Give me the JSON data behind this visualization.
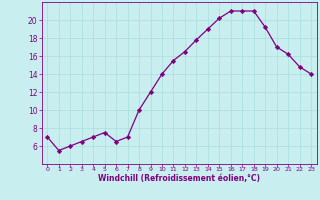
{
  "x": [
    0,
    1,
    2,
    3,
    4,
    5,
    6,
    7,
    8,
    9,
    10,
    11,
    12,
    13,
    14,
    15,
    16,
    17,
    18,
    19,
    20,
    21,
    22,
    23
  ],
  "y": [
    7,
    5.5,
    6,
    6.5,
    7,
    7.5,
    6.5,
    7,
    10,
    12,
    14,
    15.5,
    16.5,
    17.8,
    19,
    20.2,
    21,
    21,
    21,
    19.2,
    17,
    16.2,
    14.8,
    14
  ],
  "line_color": "#800080",
  "marker": "D",
  "marker_size": 2.2,
  "bg_color": "#c8eef0",
  "grid_color": "#aadddd",
  "xlabel": "Windchill (Refroidissement éolien,°C)",
  "xlabel_color": "#800080",
  "tick_color": "#800080",
  "spine_color": "#800080",
  "ylim": [
    4,
    22
  ],
  "xlim": [
    -0.5,
    23.5
  ],
  "yticks": [
    6,
    8,
    10,
    12,
    14,
    16,
    18,
    20
  ],
  "xtick_labels": [
    "0",
    "1",
    "2",
    "3",
    "4",
    "5",
    "6",
    "7",
    "8",
    "9",
    "10",
    "11",
    "12",
    "13",
    "14",
    "15",
    "16",
    "17",
    "18",
    "19",
    "20",
    "21",
    "22",
    "23"
  ]
}
